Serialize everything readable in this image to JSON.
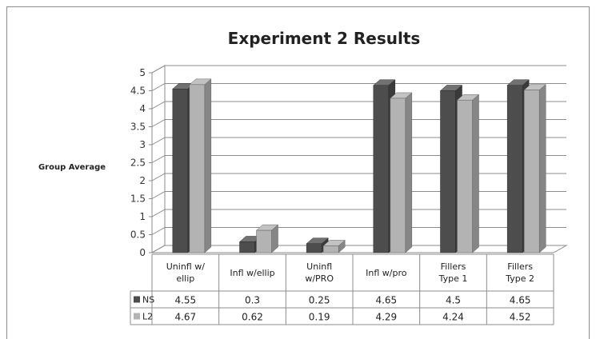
{
  "chart_data": {
    "type": "bar",
    "title": "Experiment 2 Results",
    "xlabel": "",
    "ylabel": "Group Average",
    "ylim": [
      0,
      5
    ],
    "yticks": [
      "0",
      "0.5",
      "1",
      "1.5",
      "2",
      "2.5",
      "3",
      "3.5",
      "4",
      "4.5",
      "5"
    ],
    "categories": [
      [
        "Uninfl w/",
        "ellip"
      ],
      [
        "Infl w/ellip"
      ],
      [
        "Uninfl",
        "w/PRO"
      ],
      [
        "Infl w/pro"
      ],
      [
        "Fillers",
        "Type 1"
      ],
      [
        "Fillers",
        "Type 2"
      ]
    ],
    "series": [
      {
        "name": "NS",
        "values": [
          4.55,
          0.3,
          0.25,
          4.65,
          4.5,
          4.65
        ],
        "labels": [
          "4.55",
          "0.3",
          "0.25",
          "4.65",
          "4.5",
          "4.65"
        ],
        "color": "#4d4d4d"
      },
      {
        "name": "L2",
        "values": [
          4.67,
          0.62,
          0.19,
          4.29,
          4.24,
          4.52
        ],
        "labels": [
          "4.67",
          "0.62",
          "0.19",
          "4.29",
          "4.24",
          "4.52"
        ],
        "color": "#b3b3b3"
      }
    ],
    "grid": true,
    "legend": "data-table"
  }
}
